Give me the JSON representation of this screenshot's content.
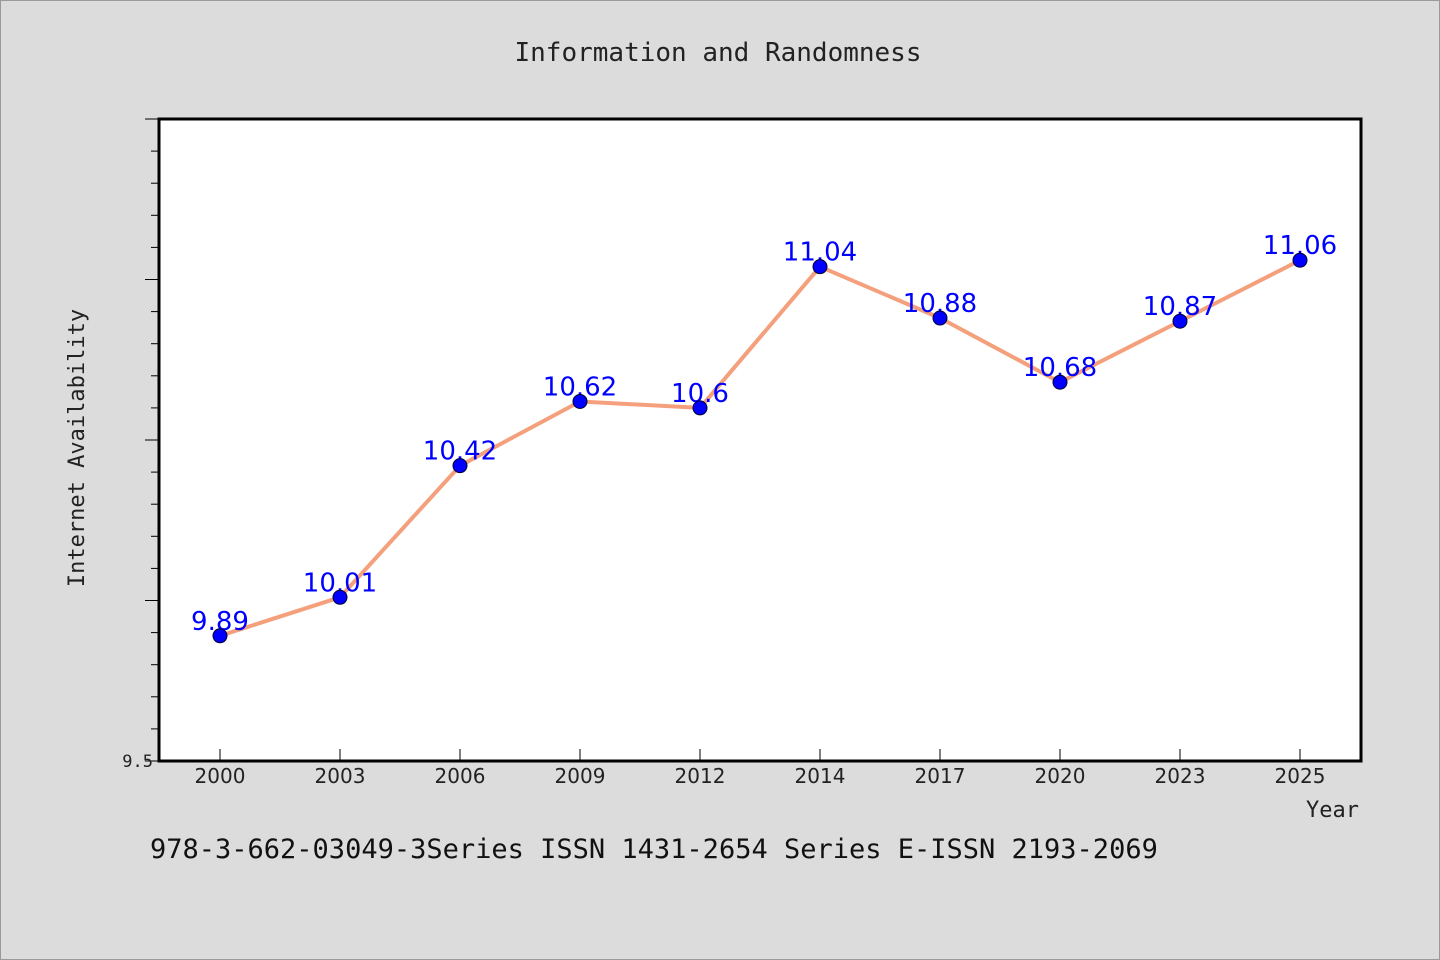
{
  "chart_data": {
    "type": "line",
    "title": "Information and Randomness",
    "xlabel": "Year",
    "ylabel": "Internet Availability",
    "categories": [
      "2000",
      "2003",
      "2006",
      "2009",
      "2012",
      "2014",
      "2017",
      "2020",
      "2023",
      "2025"
    ],
    "series": [
      {
        "values": [
          9.89,
          10.01,
          10.42,
          10.62,
          10.6,
          11.04,
          10.88,
          10.68,
          10.87,
          11.06
        ],
        "data_labels": [
          "9.89",
          "10.01",
          "10.42",
          "10.62",
          "10.6",
          "11.04",
          "10.88",
          "10.68",
          "10.87",
          "11.06"
        ]
      }
    ],
    "ylim": [
      9.5,
      11.5
    ],
    "yticks_labeled": [
      "9.5"
    ],
    "grid": false,
    "legend": "none",
    "colors": {
      "line": "#f4a07c",
      "marker": "#0000ff",
      "data_label": "#0000ff",
      "background": "#dcdcdc",
      "plot_background": "#ffffff"
    }
  },
  "footer": {
    "text": "978-3-662-03049-3Series ISSN 1431-2654 Series E-ISSN 2193-2069"
  }
}
